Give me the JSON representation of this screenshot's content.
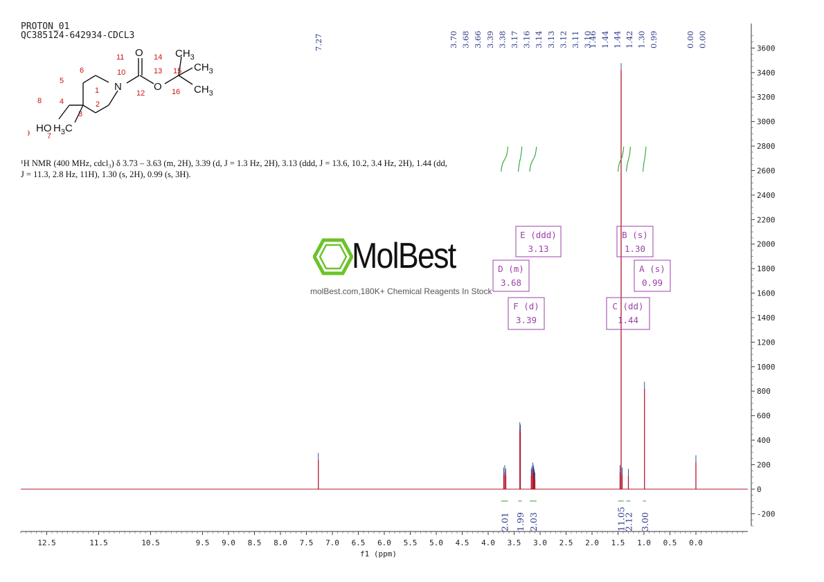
{
  "header": {
    "line1": "PROTON_01",
    "line2": "QC385124-642934-CDCL3"
  },
  "description": "¹H NMR (400 MHz, cdcl₃) δ 3.73 – 3.63 (m, 2H), 3.39 (d, J = 1.3 Hz, 2H), 3.13 (ddd, J = 13.6, 10.2, 3.4 Hz, 2H), 1.44 (dd, J = 11.3, 2.8 Hz, 11H), 1.30 (s, 2H), 0.99 (s, 3H).",
  "molecule": {
    "atoms": {
      "O_top": "O",
      "N": "N",
      "O_ester": "O",
      "CH3_top": "CH",
      "CH3_top_sub": "3",
      "CH3_mid": "CH",
      "CH3_mid_sub": "3",
      "CH3_bot": "CH",
      "CH3_bot_sub": "3",
      "HO": "HO",
      "H3C": "H",
      "H3C_sub": "3",
      "H3C_c": "C"
    },
    "numbers": [
      "1",
      "2",
      "3",
      "4",
      "5",
      "6",
      "7",
      "8",
      "9",
      "10",
      "11",
      "12",
      "13",
      "14",
      "15",
      "16"
    ]
  },
  "watermark": {
    "name": "MolBest",
    "tagline": "molBest.com,180K+ Chemical Reagents In Stock"
  },
  "chart_data": {
    "type": "line",
    "xlabel": "f1 (ppm)",
    "xlim": [
      13.0,
      -1.0
    ],
    "x_reversed": true,
    "ylim": [
      -300,
      3800
    ],
    "x_ticks": [
      12.5,
      11.5,
      10.5,
      9.5,
      9.0,
      8.5,
      8.0,
      7.5,
      7.0,
      6.5,
      6.0,
      5.5,
      5.0,
      4.5,
      4.0,
      3.5,
      3.0,
      2.5,
      2.0,
      1.5,
      1.0,
      0.5,
      0.0
    ],
    "x_tick_labels": [
      "12.5",
      "11.5",
      "10.5",
      "9.5",
      "9.0",
      "8.5",
      "8.0",
      "7.5",
      "7.0",
      "6.5",
      "6.0",
      "5.5",
      "5.0",
      "4.5",
      "4.0",
      "3.5",
      "3.0",
      "2.5",
      "2.0",
      "1.5",
      "1.0",
      "0.5",
      "0.0"
    ],
    "y_ticks": [
      -200,
      0,
      200,
      400,
      600,
      800,
      1000,
      1200,
      1400,
      1600,
      1800,
      2000,
      2200,
      2400,
      2600,
      2800,
      3000,
      3200,
      3400,
      3600
    ],
    "y_tick_labels": [
      "-200",
      "0",
      "200",
      "400",
      "600",
      "800",
      "1000",
      "1200",
      "1400",
      "1600",
      "1800",
      "2000",
      "2200",
      "2400",
      "2600",
      "2800",
      "3000",
      "3200",
      "3400",
      "3600"
    ],
    "peaks": [
      {
        "ppm": 7.27,
        "height": 240
      },
      {
        "ppm": 3.7,
        "height": 120
      },
      {
        "ppm": 3.68,
        "height": 140
      },
      {
        "ppm": 3.66,
        "height": 110
      },
      {
        "ppm": 3.39,
        "height": 490
      },
      {
        "ppm": 3.38,
        "height": 470
      },
      {
        "ppm": 3.17,
        "height": 110
      },
      {
        "ppm": 3.16,
        "height": 130
      },
      {
        "ppm": 3.14,
        "height": 160
      },
      {
        "ppm": 3.13,
        "height": 140
      },
      {
        "ppm": 3.12,
        "height": 120
      },
      {
        "ppm": 3.11,
        "height": 100
      },
      {
        "ppm": 3.1,
        "height": 80
      },
      {
        "ppm": 1.46,
        "height": 140
      },
      {
        "ppm": 1.44,
        "height": 3420
      },
      {
        "ppm": 1.42,
        "height": 120
      },
      {
        "ppm": 1.3,
        "height": 110
      },
      {
        "ppm": 0.99,
        "height": 820
      },
      {
        "ppm": 0.0,
        "height": 220
      }
    ],
    "peak_labels": [
      "3.70",
      "3.68",
      "3.66",
      "3.39",
      "3.38",
      "3.17",
      "3.16",
      "3.14",
      "3.13",
      "3.12",
      "3.11",
      "3.10",
      "1.46",
      "1.44",
      "1.44",
      "1.42",
      "1.30",
      "0.99",
      "0.00",
      "0.00"
    ],
    "solvent_label": "7.27",
    "integrals": [
      {
        "from": 3.75,
        "to": 3.62,
        "value": "2.01"
      },
      {
        "from": 3.42,
        "to": 3.35,
        "value": "1.99"
      },
      {
        "from": 3.2,
        "to": 3.07,
        "value": "2.03"
      },
      {
        "from": 1.5,
        "to": 1.39,
        "value": "11.05"
      },
      {
        "from": 1.34,
        "to": 1.26,
        "value": "2.12"
      },
      {
        "from": 1.02,
        "to": 0.96,
        "value": "3.00"
      }
    ],
    "multiplets": [
      {
        "id": "E",
        "type": "ddd",
        "shift": "3.13",
        "text1": "E (ddd)",
        "text2": "3.13"
      },
      {
        "id": "D",
        "type": "m",
        "shift": "3.68",
        "text1": "D (m)",
        "text2": "3.68"
      },
      {
        "id": "F",
        "type": "d",
        "shift": "3.39",
        "text1": "F (d)",
        "text2": "3.39"
      },
      {
        "id": "B",
        "type": "s",
        "shift": "1.30",
        "text1": "B (s)",
        "text2": "1.30"
      },
      {
        "id": "A",
        "type": "s",
        "shift": "0.99",
        "text1": "A (s)",
        "text2": "0.99"
      },
      {
        "id": "C",
        "type": "dd",
        "shift": "1.44",
        "text1": "C (dd)",
        "text2": "1.44"
      }
    ],
    "colors": {
      "spectrum": "#b0172e",
      "peak_label": "#2b3a8c",
      "integral_curve": "#2ca02c",
      "integral_value": "#2b3a8c",
      "multiplet_box": "#9b3fa8",
      "logo_green": "#6cc22b",
      "atom_number": "#cc1111"
    }
  }
}
